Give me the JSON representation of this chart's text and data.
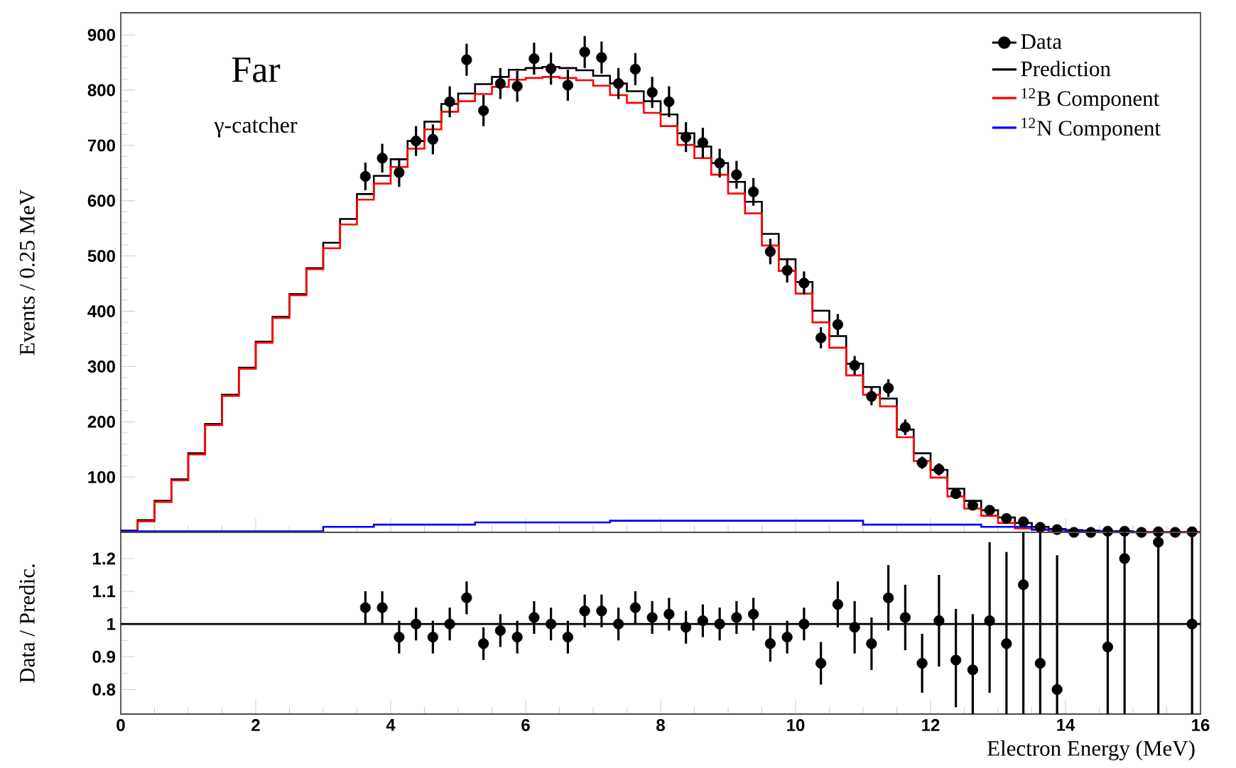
{
  "chart_data": [
    {
      "type": "histogram",
      "title": "Far",
      "subtitle": "γ-catcher",
      "ylabel": "Events / 0.25 MeV",
      "xlim": [
        0,
        16
      ],
      "xticks": [
        0,
        2,
        4,
        6,
        8,
        10,
        12,
        14,
        16
      ],
      "ylim": [
        0,
        940
      ],
      "yticks": [
        100,
        200,
        300,
        400,
        500,
        600,
        700,
        800,
        900
      ],
      "tick_labels": "y",
      "legend": "top right",
      "bins": [
        0,
        0.25,
        0.5,
        0.75,
        1,
        1.25,
        1.5,
        1.75,
        2,
        2.25,
        2.5,
        2.75,
        3,
        3.25,
        3.5,
        3.75,
        4,
        4.25,
        4.5,
        4.75,
        5,
        5.25,
        5.5,
        5.75,
        6,
        6.25,
        6.5,
        6.75,
        7,
        7.25,
        7.5,
        7.75,
        8,
        8.25,
        8.5,
        8.75,
        9,
        9.25,
        9.5,
        9.75,
        10,
        10.25,
        10.5,
        10.75,
        11,
        11.25,
        11.5,
        11.75,
        12,
        12.25,
        12.5,
        12.75,
        13,
        13.25,
        13.5,
        13.75,
        14,
        14.25,
        14.5,
        14.75,
        15,
        15.25,
        15.5,
        15.75,
        16
      ],
      "series": [
        {
          "name": "Data",
          "type": "scatter",
          "color": "#000000",
          "marker": "circle",
          "x": [
            3.625,
            3.875,
            4.125,
            4.375,
            4.625,
            4.875,
            5.125,
            5.375,
            5.625,
            5.875,
            6.125,
            6.375,
            6.625,
            6.875,
            7.125,
            7.375,
            7.625,
            7.875,
            8.125,
            8.375,
            8.625,
            8.875,
            9.125,
            9.375,
            9.625,
            9.875,
            10.125,
            10.375,
            10.625,
            10.875,
            11.125,
            11.375,
            11.625,
            11.875,
            12.125,
            12.375,
            12.625,
            12.875,
            13.125,
            13.375,
            13.625,
            13.875,
            14.125,
            14.375,
            14.625,
            14.875,
            15.125,
            15.375,
            15.625,
            15.875
          ],
          "values": [
            644,
            677,
            651,
            708,
            711,
            779,
            855,
            763,
            812,
            807,
            857,
            839,
            809,
            869,
            859,
            812,
            838,
            796,
            779,
            715,
            705,
            668,
            647,
            616,
            508,
            474,
            451,
            352,
            376,
            302,
            246,
            261,
            190,
            126,
            114,
            70,
            49,
            40,
            25,
            19,
            9,
            5,
            0,
            0,
            2,
            2,
            0,
            1,
            0,
            1
          ],
          "errors": [
            25,
            26,
            26,
            27,
            27,
            28,
            29,
            28,
            28,
            28,
            29,
            29,
            28,
            29,
            29,
            28,
            29,
            28,
            28,
            27,
            27,
            26,
            25,
            25,
            23,
            22,
            21,
            19,
            19,
            17,
            16,
            16,
            14,
            11,
            11,
            8,
            7,
            6,
            5,
            4,
            3,
            2,
            null,
            null,
            null,
            null,
            null,
            null,
            null,
            null
          ]
        },
        {
          "name": "Prediction",
          "color": "#000000",
          "values": [
            3,
            22,
            57,
            96,
            143,
            196,
            249,
            298,
            345,
            390,
            431,
            478,
            524,
            567,
            612,
            645,
            675,
            708,
            743,
            775,
            794,
            811,
            824,
            837,
            840,
            842,
            840,
            836,
            826,
            812,
            798,
            780,
            756,
            722,
            698,
            668,
            634,
            598,
            540,
            494,
            453,
            401,
            355,
            305,
            263,
            242,
            186,
            143,
            113,
            79,
            57,
            40,
            27,
            17,
            10,
            6,
            4,
            3,
            2,
            2,
            1,
            1,
            1,
            1
          ]
        },
        {
          "name": "$^{12}$B Component",
          "color": "#ff0000",
          "values": [
            1,
            20,
            55,
            94,
            141,
            194,
            247,
            296,
            343,
            388,
            429,
            476,
            514,
            557,
            602,
            631,
            661,
            694,
            729,
            761,
            780,
            793,
            806,
            819,
            822,
            824,
            822,
            818,
            808,
            791,
            777,
            759,
            735,
            701,
            677,
            647,
            613,
            577,
            519,
            473,
            432,
            380,
            334,
            284,
            249,
            228,
            172,
            129,
            99,
            65,
            43,
            30,
            17,
            7,
            5,
            1,
            2,
            1,
            0,
            0,
            1,
            1,
            1,
            1
          ]
        },
        {
          "name": "$^{12}$N Component",
          "color": "#0000ff",
          "values": [
            2,
            2,
            2,
            2,
            2,
            2,
            2,
            2,
            2,
            2,
            2,
            2,
            10,
            10,
            10,
            14,
            14,
            14,
            14,
            14,
            14,
            18,
            18,
            18,
            18,
            18,
            18,
            18,
            18,
            21,
            21,
            21,
            21,
            21,
            21,
            21,
            21,
            21,
            21,
            21,
            21,
            21,
            21,
            21,
            14,
            14,
            14,
            14,
            14,
            14,
            14,
            10,
            10,
            10,
            5,
            5,
            2,
            2,
            2,
            2,
            0,
            0,
            0,
            0
          ]
        }
      ]
    },
    {
      "type": "scatter",
      "xlabel": "Electron Energy (MeV)",
      "ylabel": "Data / Predic.",
      "xlim": [
        0,
        16
      ],
      "xticks": [
        0,
        2,
        4,
        6,
        8,
        10,
        12,
        14,
        16
      ],
      "ylim": [
        0.725,
        1.28
      ],
      "yticks": [
        0.8,
        0.9,
        1,
        1.1,
        1.2
      ],
      "marker": "circle",
      "ref_lines": [
        {
          "axis": "y",
          "value": 1,
          "color": "#000000"
        }
      ],
      "series": [
        {
          "color": "#000000",
          "x": [
            3.625,
            3.875,
            4.125,
            4.375,
            4.625,
            4.875,
            5.125,
            5.375,
            5.625,
            5.875,
            6.125,
            6.375,
            6.625,
            6.875,
            7.125,
            7.375,
            7.625,
            7.875,
            8.125,
            8.375,
            8.625,
            8.875,
            9.125,
            9.375,
            9.625,
            9.875,
            10.125,
            10.375,
            10.625,
            10.875,
            11.125,
            11.375,
            11.625,
            11.875,
            12.125,
            12.375,
            12.625,
            12.875,
            13.125,
            13.375,
            13.625,
            13.875,
            14.625,
            14.875,
            15.375,
            15.875
          ],
          "values": [
            1.05,
            1.05,
            0.96,
            1.0,
            0.96,
            1.0,
            1.08,
            0.94,
            0.98,
            0.96,
            1.02,
            1.0,
            0.96,
            1.04,
            1.04,
            1.0,
            1.05,
            1.02,
            1.03,
            0.99,
            1.01,
            1.0,
            1.02,
            1.03,
            0.94,
            0.96,
            1.0,
            0.88,
            1.06,
            0.99,
            0.94,
            1.08,
            1.02,
            0.88,
            1.01,
            0.89,
            0.86,
            1.01,
            0.94,
            1.12,
            0.88,
            0.8,
            0.93,
            1.2,
            1.25,
            1.0
          ],
          "errors": [
            0.05,
            0.05,
            0.05,
            0.05,
            0.05,
            0.05,
            0.05,
            0.05,
            0.05,
            0.05,
            0.05,
            0.05,
            0.05,
            0.05,
            0.05,
            0.05,
            0.05,
            0.05,
            0.05,
            0.05,
            0.05,
            0.05,
            0.05,
            0.05,
            0.055,
            0.05,
            0.05,
            0.065,
            0.07,
            0.08,
            0.08,
            0.1,
            0.1,
            0.09,
            0.14,
            [
              0.746,
              1.046
            ],
            [
              0.725,
              1.03
            ],
            [
              0.79,
              1.25
            ],
            [
              0.725,
              1.22
            ],
            [
              0.725,
              1.28
            ],
            [
              0.725,
              1.28
            ],
            [
              0.725,
              1.21
            ],
            [
              0.725,
              1.28
            ],
            [
              0.725,
              1.28
            ],
            [
              0.725,
              1.28
            ],
            [
              0.725,
              1.28
            ]
          ]
        }
      ]
    }
  ]
}
